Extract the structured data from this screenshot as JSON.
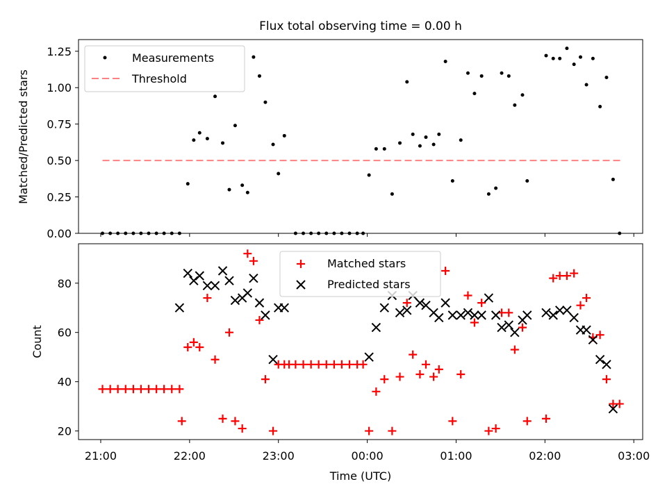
{
  "chart_data": [
    {
      "type": "scatter",
      "title": "Flux total observing time = 0.00 h",
      "ylabel": "Matched/Predicted stars",
      "xlabel": "",
      "xlim": [
        -0.25,
        6.1
      ],
      "ylim": [
        0,
        1.33
      ],
      "yticks": [
        0,
        0.25,
        0.5,
        0.75,
        1.0,
        1.25
      ],
      "ytick_labels": [
        "0.00",
        "0.25",
        "0.50",
        "0.75",
        "1.00",
        "1.25"
      ],
      "legend_position": "upper-left",
      "series": [
        {
          "name": "Measurements",
          "marker": "dot",
          "color": "#000000",
          "x": [
            0.02,
            0.107,
            0.193,
            0.28,
            0.367,
            0.453,
            0.54,
            0.627,
            0.713,
            0.8,
            0.887,
            0.98,
            1.047,
            1.113,
            1.2,
            1.287,
            1.373,
            1.447,
            1.513,
            1.593,
            1.653,
            1.72,
            1.787,
            1.853,
            1.94,
            2.0,
            2.067,
            2.193,
            2.28,
            2.367,
            2.453,
            2.54,
            2.627,
            2.713,
            2.8,
            2.887,
            2.953,
            3.02,
            3.1,
            3.193,
            3.28,
            3.367,
            3.447,
            3.513,
            3.593,
            3.66,
            3.747,
            3.807,
            3.88,
            3.96,
            4.053,
            4.133,
            4.207,
            4.287,
            4.367,
            4.447,
            4.513,
            4.593,
            4.66,
            4.747,
            4.8,
            5.013,
            5.093,
            5.167,
            5.247,
            5.327,
            5.4,
            5.467,
            5.54,
            5.62,
            5.693,
            5.767,
            5.84
          ],
          "y": [
            0,
            0,
            0,
            0,
            0,
            0,
            0,
            0,
            0,
            0,
            0,
            0.34,
            0.64,
            0.69,
            0.65,
            0.94,
            0.62,
            0.3,
            0.74,
            0.33,
            0.28,
            1.21,
            1.08,
            0.9,
            0.61,
            0.41,
            0.67,
            0,
            0,
            0,
            0,
            0,
            0,
            0,
            0,
            0,
            0,
            0.4,
            0.58,
            0.58,
            0.27,
            0.62,
            1.04,
            0.68,
            0.6,
            0.66,
            0.61,
            0.68,
            1.18,
            0.36,
            0.64,
            1.1,
            0.96,
            1.08,
            0.27,
            0.31,
            1.1,
            1.08,
            0.88,
            0.95,
            0.36,
            1.22,
            1.2,
            1.2,
            1.27,
            1.16,
            1.21,
            1.02,
            1.2,
            0.87,
            1.07,
            0.37,
            0
          ]
        },
        {
          "name": "Threshold",
          "style": "dashed",
          "color": "#ff8080",
          "x": [
            0.02,
            5.853
          ],
          "y": [
            0.5,
            0.5
          ]
        }
      ]
    },
    {
      "type": "scatter",
      "title": "",
      "ylabel": "Count",
      "xlabel": "Time (UTC)",
      "xlim": [
        -0.25,
        6.1
      ],
      "ylim": [
        16.5,
        96
      ],
      "yticks": [
        20,
        40,
        60,
        80
      ],
      "xticks": [
        0,
        1,
        2,
        3,
        4,
        5,
        6
      ],
      "xtick_labels": [
        "21:00",
        "22:00",
        "23:00",
        "00:00",
        "01:00",
        "02:00",
        "03:00"
      ],
      "legend_position": "upper-center",
      "series": [
        {
          "name": "Matched stars",
          "marker": "plus",
          "color": "#ff0000",
          "x": [
            0.02,
            0.107,
            0.193,
            0.28,
            0.367,
            0.453,
            0.54,
            0.627,
            0.713,
            0.8,
            0.887,
            0.913,
            0.98,
            1.047,
            1.113,
            1.2,
            1.287,
            1.373,
            1.447,
            1.513,
            1.593,
            1.653,
            1.72,
            1.787,
            1.853,
            1.94,
            2.0,
            2.067,
            2.12,
            2.193,
            2.28,
            2.367,
            2.453,
            2.54,
            2.627,
            2.713,
            2.8,
            2.887,
            2.953,
            3.02,
            3.1,
            3.193,
            3.28,
            3.367,
            3.447,
            3.513,
            3.593,
            3.66,
            3.747,
            3.807,
            3.88,
            3.96,
            4.053,
            4.133,
            4.207,
            4.287,
            4.367,
            4.447,
            4.513,
            4.593,
            4.66,
            4.747,
            4.8,
            5.013,
            5.093,
            5.167,
            5.247,
            5.327,
            5.4,
            5.467,
            5.54,
            5.62,
            5.693,
            5.767,
            5.84
          ],
          "y": [
            37,
            37,
            37,
            37,
            37,
            37,
            37,
            37,
            37,
            37,
            37,
            24,
            54,
            56,
            54,
            74,
            49,
            25,
            60,
            24,
            21,
            92,
            89,
            65,
            41,
            20,
            47,
            47,
            47,
            47,
            47,
            47,
            47,
            47,
            47,
            47,
            47,
            47,
            47,
            20,
            36,
            41,
            20,
            42,
            72,
            51,
            43,
            47,
            42,
            45,
            85,
            24,
            43,
            75,
            64,
            72,
            20,
            21,
            68,
            68,
            53,
            62,
            24,
            25,
            82,
            83,
            83,
            84,
            71,
            74,
            58,
            59,
            41,
            31,
            31
          ]
        },
        {
          "name": "Predicted stars",
          "marker": "x",
          "color": "#000000",
          "x": [
            0.887,
            0.98,
            1.047,
            1.113,
            1.2,
            1.287,
            1.373,
            1.447,
            1.513,
            1.593,
            1.653,
            1.72,
            1.787,
            1.853,
            1.94,
            2.0,
            2.067,
            3.02,
            3.1,
            3.193,
            3.28,
            3.367,
            3.447,
            3.513,
            3.593,
            3.66,
            3.747,
            3.807,
            3.88,
            3.96,
            4.053,
            4.133,
            4.207,
            4.287,
            4.367,
            4.447,
            4.513,
            4.593,
            4.66,
            4.747,
            4.8,
            5.013,
            5.093,
            5.167,
            5.247,
            5.327,
            5.4,
            5.467,
            5.54,
            5.62,
            5.693,
            5.767
          ],
          "y": [
            70,
            84,
            81,
            83,
            79,
            79,
            85,
            81,
            73,
            74,
            76,
            82,
            72,
            67,
            49,
            70,
            70,
            50,
            62,
            70,
            75,
            68,
            69,
            75,
            72,
            71,
            68,
            66,
            72,
            67,
            67,
            68,
            67,
            67,
            74,
            67,
            62,
            63,
            60,
            65,
            67,
            68,
            67,
            69,
            69,
            66,
            61,
            61,
            57,
            49,
            47,
            29
          ]
        }
      ]
    }
  ]
}
